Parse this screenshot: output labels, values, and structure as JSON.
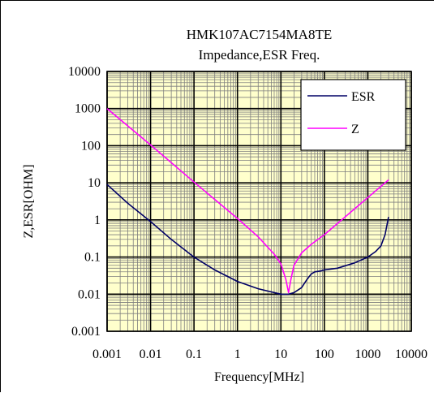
{
  "chart_data": {
    "type": "line",
    "title": "HMK107AC7154MA8TE",
    "subtitle": "Impedance,ESR  Freq.",
    "xlabel": "Frequency[MHz]",
    "ylabel": "Z,ESR[OHM]",
    "x_scale": "log",
    "y_scale": "log",
    "xlim": [
      0.001,
      10000
    ],
    "ylim": [
      0.001,
      10000
    ],
    "x_ticks": [
      0.001,
      0.01,
      0.1,
      1,
      10,
      100,
      1000,
      10000
    ],
    "x_tick_labels": [
      "0.001",
      "0.01",
      "0.1",
      "1",
      "10",
      "100",
      "1000",
      "10000"
    ],
    "y_ticks": [
      0.001,
      0.01,
      0.1,
      1,
      10,
      100,
      1000,
      10000
    ],
    "y_tick_labels": [
      "0.001",
      "0.01",
      "0.1",
      "1",
      "10",
      "100",
      "1000",
      "10000"
    ],
    "grid": true,
    "legend_position": "top-right",
    "plot_background": "#FFFFCC",
    "series": [
      {
        "name": "ESR",
        "color": "#000066",
        "x": [
          0.001,
          0.003,
          0.01,
          0.03,
          0.1,
          0.3,
          1,
          3,
          10,
          15,
          20,
          30,
          40,
          50,
          60,
          80,
          100,
          200,
          500,
          1000,
          1500,
          2000,
          2500,
          3000
        ],
        "y": [
          9,
          2.8,
          0.9,
          0.3,
          0.1,
          0.045,
          0.022,
          0.014,
          0.01,
          0.01,
          0.011,
          0.015,
          0.025,
          0.035,
          0.04,
          0.042,
          0.045,
          0.05,
          0.07,
          0.1,
          0.14,
          0.2,
          0.4,
          1.2
        ]
      },
      {
        "name": "Z",
        "color": "#FF00FF",
        "x": [
          0.001,
          0.01,
          0.1,
          1,
          3,
          7,
          10,
          13,
          15,
          17,
          20,
          30,
          50,
          100,
          300,
          1000,
          3000
        ],
        "y": [
          1000,
          105,
          10.5,
          1.1,
          0.35,
          0.12,
          0.065,
          0.025,
          0.011,
          0.025,
          0.06,
          0.13,
          0.22,
          0.4,
          1.2,
          4,
          12
        ]
      }
    ]
  }
}
